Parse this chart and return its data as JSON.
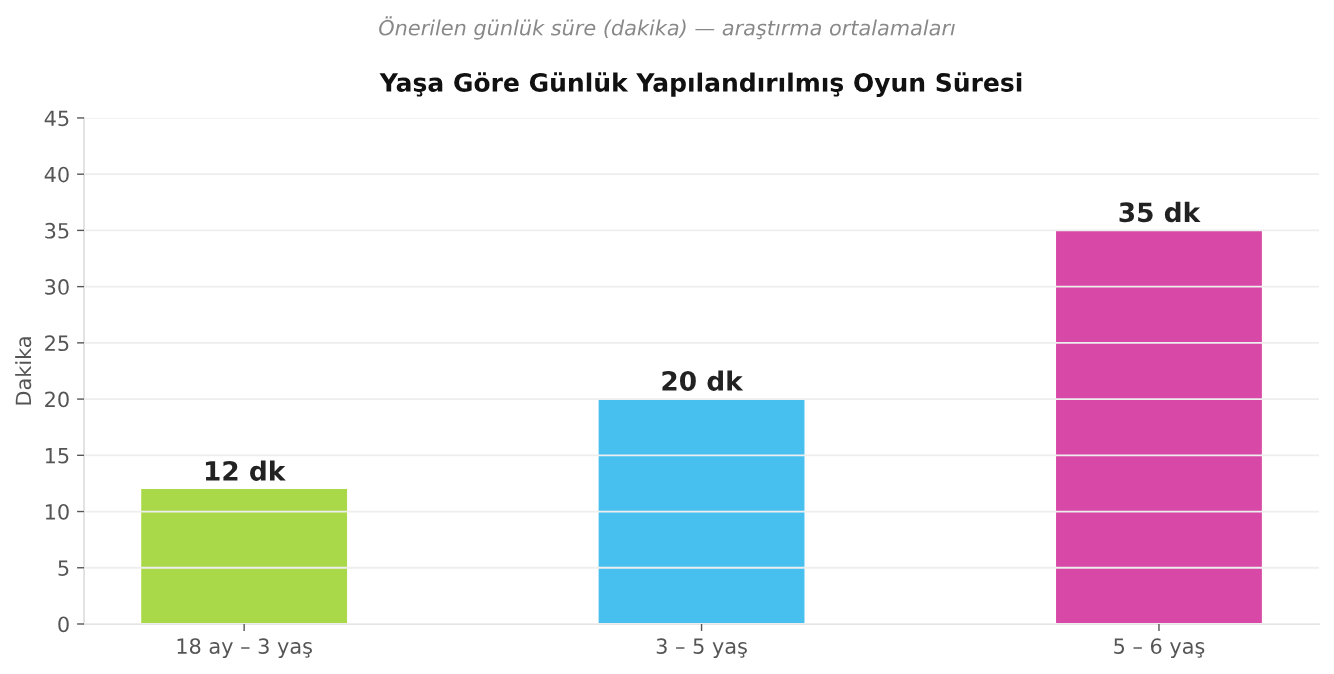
{
  "chart_data": {
    "type": "bar",
    "title": "Yaşa Göre Günlük Yapılandırılmış Oyun Süresi",
    "subtitle": "Önerilen günlük süre (dakika) — araştırma ortalamaları",
    "ylabel": "Dakika",
    "categories": [
      "18 ay – 3 yaş",
      "3 – 5 yaş",
      "5 – 6 yaş"
    ],
    "values": [
      12,
      20,
      35
    ],
    "colors": [
      "#a9d948",
      "#48c0ef",
      "#d848a6"
    ],
    "value_labels": [
      "12 dk",
      "20 dk",
      "35 dk"
    ],
    "ylim": [
      0,
      45
    ],
    "yticks": [
      0,
      5,
      10,
      15,
      20,
      25,
      30,
      35,
      40,
      45
    ],
    "grid": "y"
  }
}
